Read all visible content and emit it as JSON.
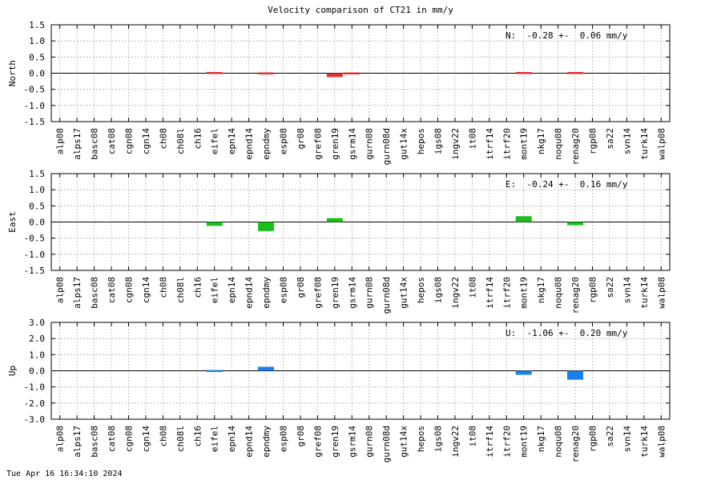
{
  "title": "Velocity comparison of CT21 in mm/y",
  "footer": "Tue Apr 16 16:34:10 2024",
  "chart_data": {
    "type": "bar",
    "categories": [
      "alp08",
      "alps17",
      "basc08",
      "cat08",
      "cgn08",
      "cgn14",
      "ch08",
      "ch08l",
      "ch16",
      "eifel",
      "epn14",
      "epnd14",
      "epndmy",
      "esp08",
      "gr08",
      "gref08",
      "gren19",
      "gsrm14",
      "gurn08",
      "gurn08d",
      "gut14x",
      "hepos",
      "igs08",
      "ingv22",
      "it08",
      "itrf14",
      "itrf20",
      "mont19",
      "nkg17",
      "noqu08",
      "renag20",
      "rgp08",
      "sa22",
      "svn14",
      "turk14",
      "walp08"
    ],
    "panels": [
      {
        "ylabel": "North",
        "ylim": [
          -1.5,
          1.5
        ],
        "yticks": [
          "1.5",
          "1.0",
          "0.5",
          "0.0",
          "-0.5",
          "-1.0",
          "-1.5"
        ],
        "ytick_values": [
          1.5,
          1.0,
          0.5,
          0.0,
          -0.5,
          -1.0,
          -1.5
        ],
        "stat_text": "N:  -0.28 +-  0.06 mm/y",
        "color": "#e03030",
        "values": [
          null,
          null,
          null,
          null,
          null,
          null,
          null,
          null,
          null,
          0.04,
          null,
          null,
          -0.04,
          null,
          null,
          null,
          -0.12,
          -0.02,
          null,
          null,
          null,
          null,
          null,
          null,
          null,
          null,
          null,
          0.03,
          null,
          null,
          0.01,
          null,
          null,
          null,
          null,
          null
        ]
      },
      {
        "ylabel": "East",
        "ylim": [
          -1.5,
          1.5
        ],
        "yticks": [
          "1.5",
          "1.0",
          "0.5",
          "0.0",
          "-0.5",
          "-1.0",
          "-1.5"
        ],
        "ytick_values": [
          1.5,
          1.0,
          0.5,
          0.0,
          -0.5,
          -1.0,
          -1.5
        ],
        "stat_text": "E:  -0.24 +-  0.16 mm/y",
        "color": "#18c018",
        "values": [
          null,
          null,
          null,
          null,
          null,
          null,
          null,
          null,
          null,
          -0.12,
          null,
          null,
          -0.28,
          null,
          null,
          null,
          0.12,
          null,
          null,
          null,
          null,
          null,
          null,
          null,
          null,
          null,
          null,
          0.18,
          null,
          null,
          -0.1,
          null,
          null,
          null,
          null,
          null
        ]
      },
      {
        "ylabel": "Up",
        "ylim": [
          -3.0,
          3.0
        ],
        "yticks": [
          "3.0",
          "2.0",
          "1.0",
          "0.0",
          "-1.0",
          "-2.0",
          "-3.0"
        ],
        "ytick_values": [
          3.0,
          2.0,
          1.0,
          0.0,
          -1.0,
          -2.0,
          -3.0
        ],
        "stat_text": "U:  -1.06 +-  0.20 mm/y",
        "color": "#1a80f0",
        "values": [
          null,
          null,
          null,
          null,
          null,
          null,
          null,
          null,
          null,
          -0.05,
          null,
          null,
          0.25,
          null,
          null,
          null,
          null,
          null,
          null,
          null,
          null,
          null,
          null,
          null,
          null,
          null,
          null,
          -0.25,
          null,
          null,
          -0.55,
          null,
          null,
          null,
          null,
          null
        ]
      }
    ]
  }
}
